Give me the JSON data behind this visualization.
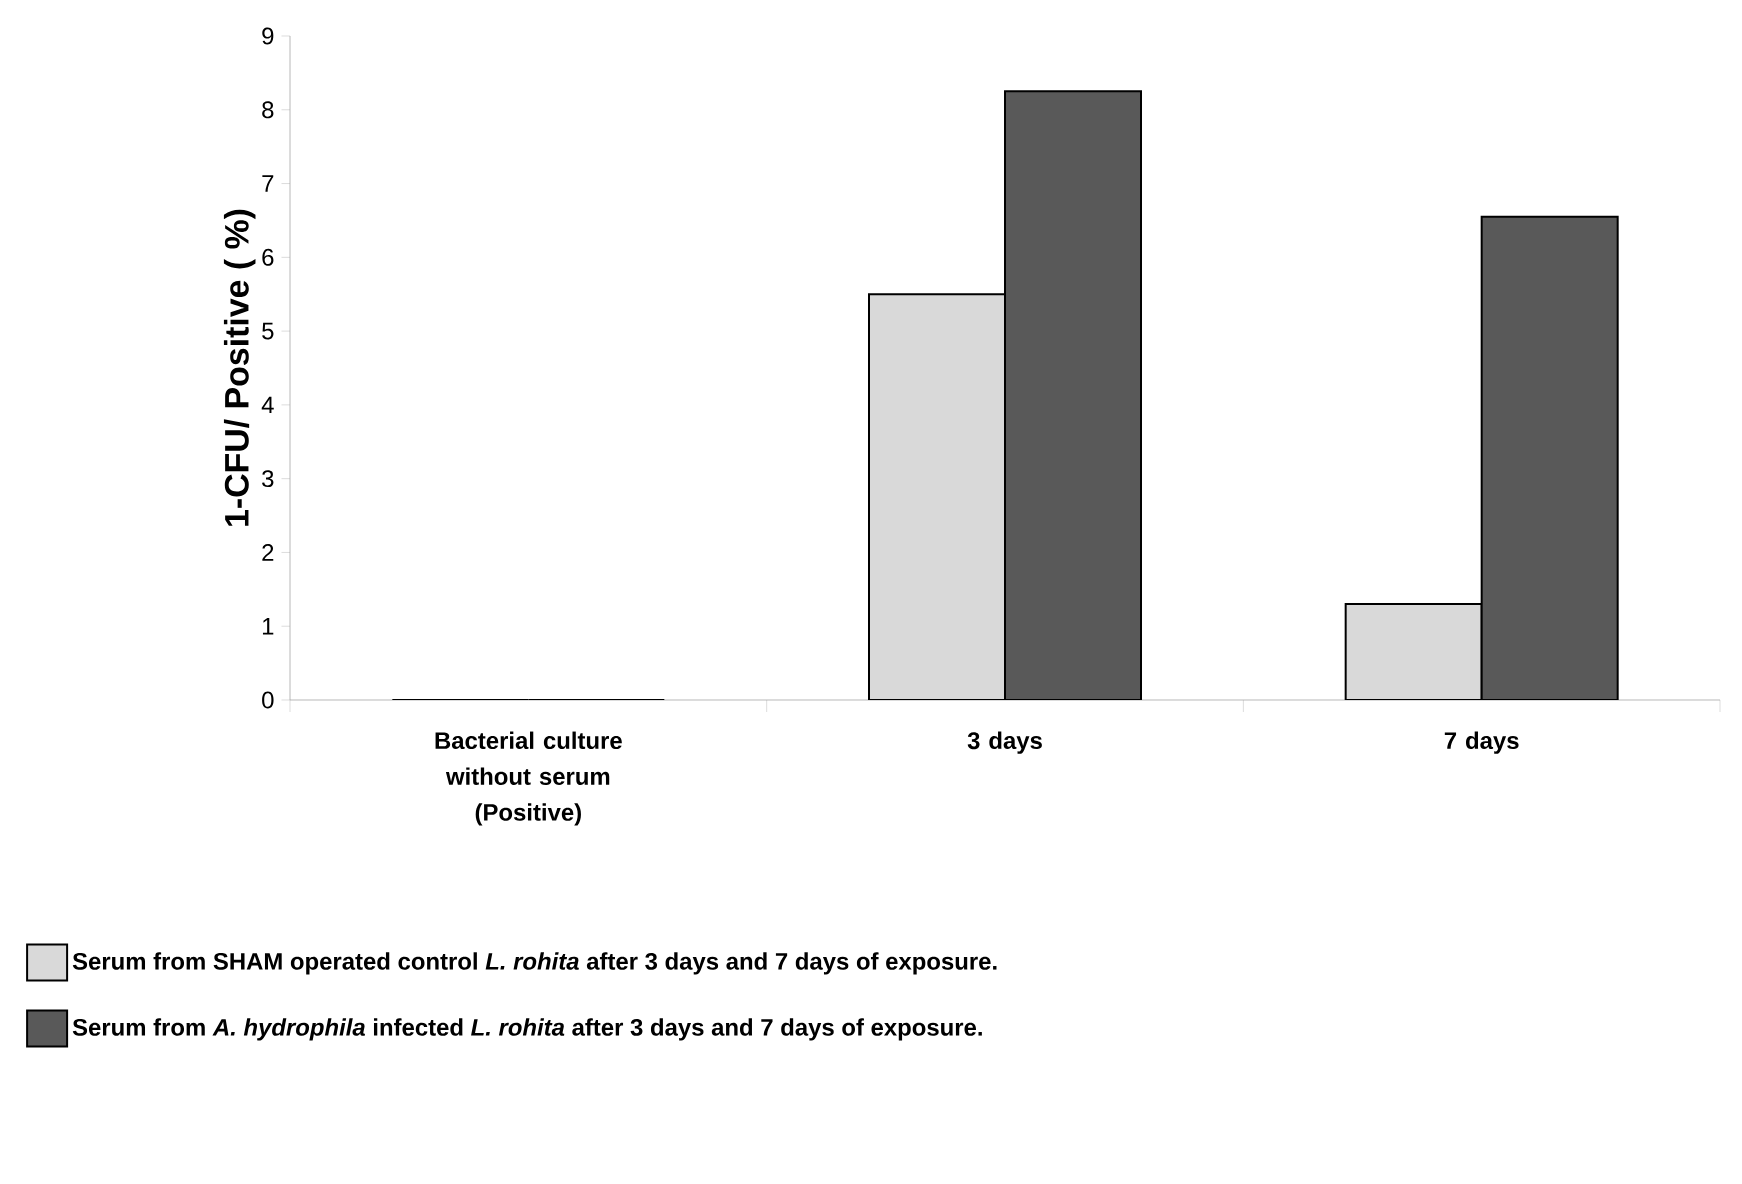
{
  "chart_data": {
    "type": "bar",
    "ylabel": "1-CFU/ Positive ( %)",
    "categories": [
      "Bacterial culture without serum (Positive)",
      "3 days",
      "7 days"
    ],
    "series": [
      {
        "name": "Serum from SHAM operated control *L. rohita* after 3 days and 7 days of exposure.",
        "color": "#d9d9d9",
        "values": [
          0,
          5.5,
          1.3
        ]
      },
      {
        "name": "Serum from *A. hydrophila* infected *L. rohita* after 3 days and 7 days of exposure.",
        "color": "#595959",
        "values": [
          0,
          8.25,
          6.55
        ]
      }
    ],
    "ylim": [
      0,
      9
    ],
    "yticks": [
      0,
      1,
      2,
      3,
      4,
      5,
      6,
      7,
      8,
      9
    ],
    "legend": "bottom"
  }
}
